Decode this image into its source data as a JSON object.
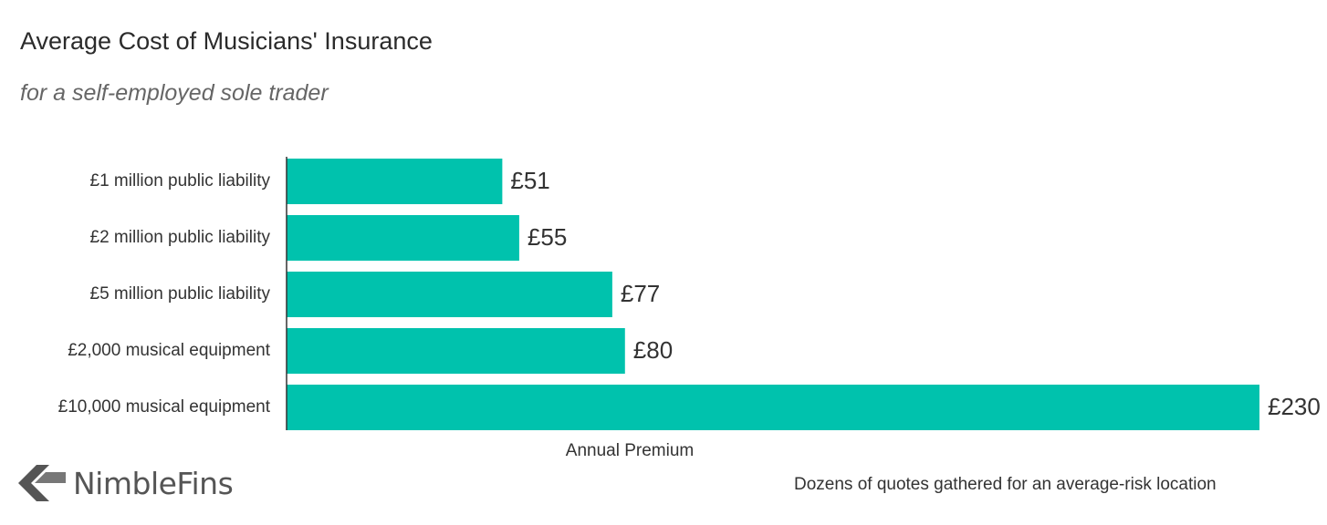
{
  "title": "Average Cost of Musicians' Insurance",
  "subtitle": "for a self-employed sole trader",
  "logo": {
    "text": "NimbleFins"
  },
  "footnote": "Dozens of quotes gathered for an average-risk location",
  "colors": {
    "bar": "#00c2ad",
    "axis": "#333333",
    "text": "#333333"
  },
  "chart_data": {
    "type": "bar",
    "orientation": "horizontal",
    "categories": [
      "£1 million public liability",
      "£2 million public liability",
      "£5 million public liability",
      "£2,000 musical equipment",
      "£10,000 musical equipment"
    ],
    "values": [
      51,
      55,
      77,
      80,
      230
    ],
    "value_labels": [
      "£51",
      "£55",
      "£77",
      "£80",
      "£230"
    ],
    "xlabel": "Annual Premium",
    "ylabel": "",
    "xlim": [
      0,
      230
    ],
    "grid": false,
    "legend": "none"
  }
}
